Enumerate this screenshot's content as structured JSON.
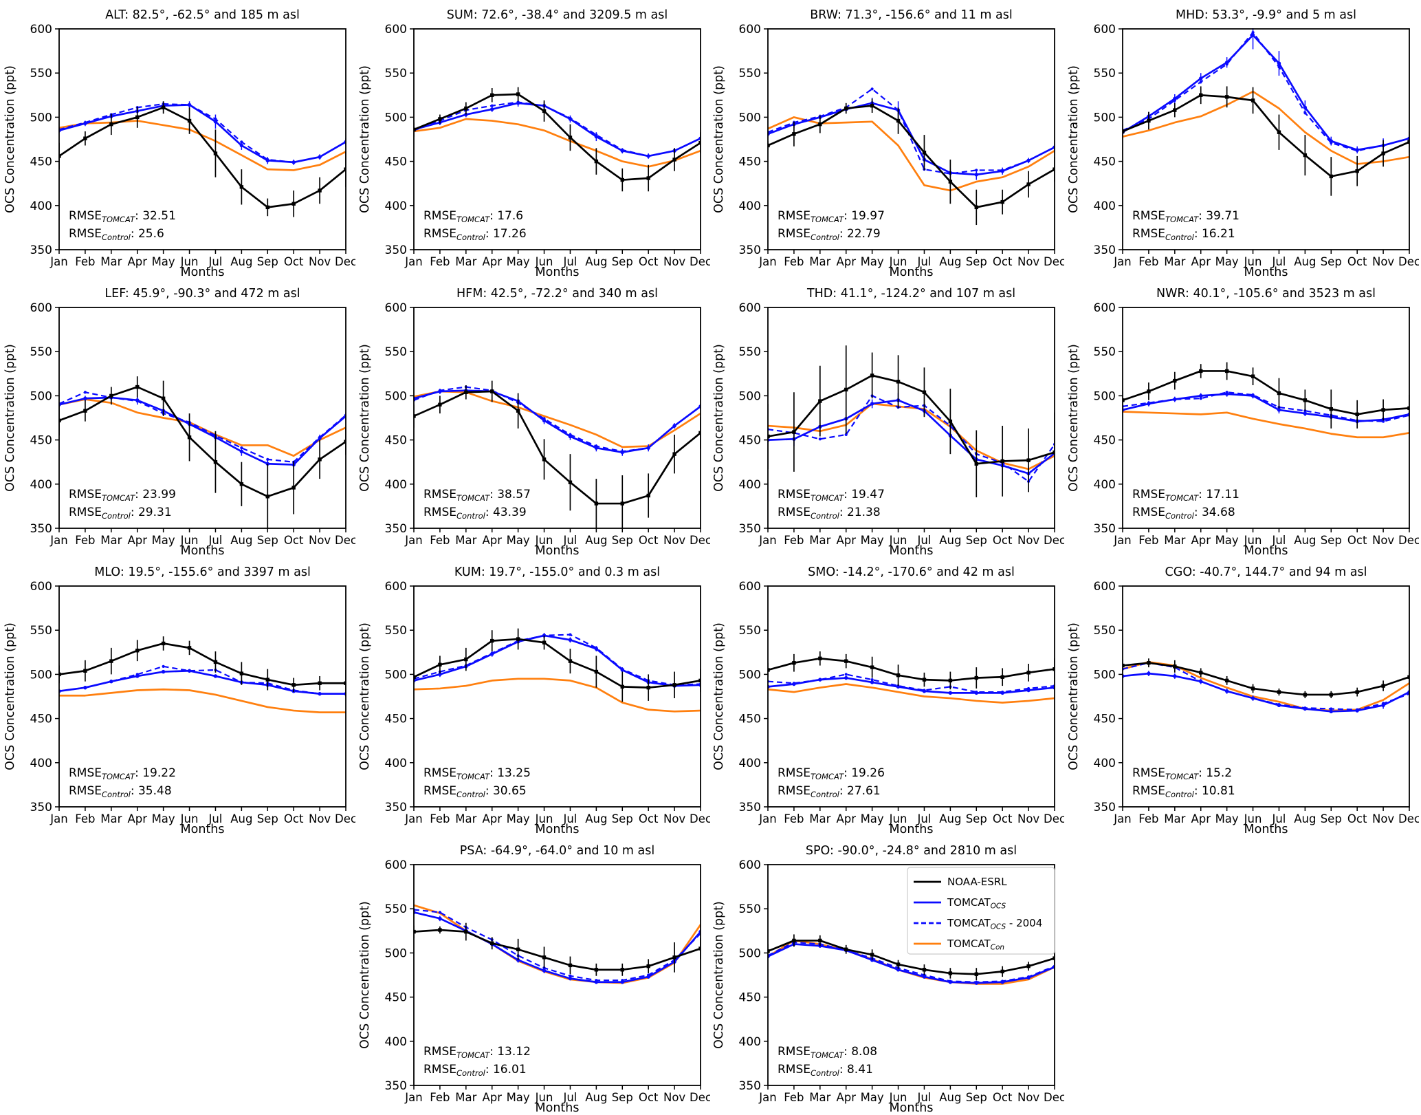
{
  "figure": {
    "ylabel": "OCS Concentration (ppt)",
    "xlabel": "Months",
    "months": [
      "Jan",
      "Feb",
      "Mar",
      "Apr",
      "May",
      "Jun",
      "Jul",
      "Aug",
      "Sep",
      "Oct",
      "Nov",
      "Dec"
    ],
    "yticks": [
      350,
      400,
      450,
      500,
      550,
      600
    ],
    "ylim": [
      350,
      600
    ],
    "colors": {
      "obs": "#000000",
      "ocs": "#0a0aff",
      "ocs2004": "#0a0aff",
      "con": "#ff7f0e"
    },
    "rmse": {
      "label": "RMSE",
      "tomcat_sub": "TOMCAT",
      "control_sub": "Control",
      "sep": ": "
    },
    "legend_entries": [
      {
        "key": "obs",
        "label_main": "NOAA-ESRL",
        "label_sub": "",
        "label_suffix": "",
        "style": "solid",
        "color": "#000000"
      },
      {
        "key": "ocs",
        "label_main": "TOMCAT",
        "label_sub": "OCS",
        "label_suffix": "",
        "style": "solid",
        "color": "#0a0aff"
      },
      {
        "key": "ocs2004",
        "label_main": "TOMCAT",
        "label_sub": "OCS",
        "label_suffix": " - 2004",
        "style": "dashed",
        "color": "#0a0aff"
      },
      {
        "key": "con",
        "label_main": "TOMCAT",
        "label_sub": "Con",
        "label_suffix": "",
        "style": "solid",
        "color": "#ff7f0e"
      }
    ]
  },
  "chart_data": [
    {
      "type": "line",
      "station": "ALT",
      "title": "ALT: 82.5°, -62.5° and 185 m asl",
      "row": 0,
      "col": 0,
      "show_legend": false,
      "rmse_tomcat": "32.51",
      "rmse_control": "25.6",
      "obs": [
        456,
        476,
        492,
        500,
        511,
        496,
        459,
        421,
        398,
        402,
        417,
        441
      ],
      "obs_err": [
        15,
        8,
        12,
        12,
        7,
        15,
        27,
        20,
        10,
        15,
        15,
        20
      ],
      "ocs": [
        485,
        493,
        501,
        507,
        513,
        514,
        495,
        468,
        451,
        449,
        455,
        472
      ],
      "ocs_err": [
        3,
        3,
        3,
        4,
        5,
        4,
        8,
        5,
        4,
        3,
        3,
        4
      ],
      "ocs2004": [
        486,
        494,
        503,
        511,
        515,
        514,
        498,
        472,
        452,
        449,
        455,
        472
      ],
      "con": [
        488,
        493,
        494,
        496,
        491,
        486,
        473,
        457,
        441,
        440,
        446,
        461
      ]
    },
    {
      "type": "line",
      "station": "SUM",
      "title": "SUM: 72.6°, -38.4° and 3209.5 m asl",
      "row": 0,
      "col": 1,
      "show_legend": false,
      "rmse_tomcat": "17.6",
      "rmse_control": "17.26",
      "obs": [
        486,
        498,
        510,
        525,
        526,
        507,
        477,
        450,
        429,
        431,
        452,
        471
      ],
      "obs_err": [
        8,
        5,
        7,
        8,
        8,
        12,
        15,
        15,
        13,
        15,
        13,
        12
      ],
      "ocs": [
        486,
        494,
        503,
        509,
        516,
        513,
        498,
        478,
        462,
        456,
        462,
        476
      ],
      "ocs_err": [
        3,
        3,
        3,
        3,
        4,
        4,
        4,
        5,
        3,
        3,
        3,
        3
      ],
      "ocs2004": [
        485,
        496,
        508,
        513,
        517,
        513,
        499,
        480,
        463,
        456,
        462,
        476
      ],
      "con": [
        484,
        488,
        498,
        496,
        492,
        485,
        473,
        462,
        450,
        444,
        451,
        462
      ]
    },
    {
      "type": "line",
      "station": "BRW",
      "title": "BRW: 71.3°, -156.6° and 11 m asl",
      "row": 0,
      "col": 2,
      "show_legend": false,
      "rmse_tomcat": "19.97",
      "rmse_control": "22.79",
      "obs": [
        468,
        481,
        492,
        510,
        513,
        496,
        460,
        427,
        398,
        404,
        424,
        441
      ],
      "obs_err": [
        5,
        14,
        10,
        6,
        8,
        15,
        20,
        25,
        20,
        14,
        15,
        14
      ],
      "ocs": [
        481,
        492,
        500,
        509,
        516,
        508,
        452,
        437,
        435,
        439,
        451,
        466
      ],
      "ocs_err": [
        4,
        4,
        3,
        4,
        6,
        10,
        8,
        5,
        6,
        4,
        3,
        4
      ],
      "ocs2004": [
        483,
        494,
        501,
        511,
        532,
        508,
        441,
        436,
        440,
        440,
        451,
        466
      ],
      "con": [
        487,
        500,
        493,
        494,
        495,
        468,
        423,
        417,
        427,
        432,
        444,
        462
      ]
    },
    {
      "type": "line",
      "station": "MHD",
      "title": "MHD: 53.3°, -9.9° and 5 m asl",
      "row": 0,
      "col": 3,
      "show_legend": false,
      "rmse_tomcat": "39.71",
      "rmse_control": "16.21",
      "obs": [
        484,
        496,
        508,
        525,
        523,
        519,
        483,
        457,
        433,
        439,
        459,
        472
      ],
      "obs_err": [
        8,
        10,
        8,
        10,
        12,
        15,
        20,
        23,
        22,
        17,
        15,
        12
      ],
      "ocs": [
        483,
        501,
        521,
        544,
        562,
        593,
        561,
        511,
        473,
        463,
        468,
        476
      ],
      "ocs_err": [
        4,
        5,
        5,
        6,
        6,
        16,
        14,
        8,
        5,
        4,
        8,
        4
      ],
      "ocs2004": [
        485,
        498,
        519,
        540,
        560,
        596,
        557,
        505,
        471,
        462,
        468,
        476
      ],
      "con": [
        478,
        485,
        494,
        501,
        514,
        529,
        510,
        483,
        462,
        447,
        450,
        455
      ]
    },
    {
      "type": "line",
      "station": "LEF",
      "title": "LEF: 45.9°, -90.3° and 472 m asl",
      "row": 1,
      "col": 0,
      "show_legend": false,
      "rmse_tomcat": "23.99",
      "rmse_control": "29.31",
      "obs": [
        472,
        483,
        500,
        510,
        497,
        453,
        425,
        400,
        386,
        396,
        428,
        448
      ],
      "obs_err": [
        17,
        12,
        10,
        12,
        20,
        27,
        35,
        25,
        37,
        30,
        22,
        15
      ],
      "ocs": [
        490,
        497,
        498,
        495,
        483,
        468,
        453,
        437,
        423,
        422,
        452,
        477
      ],
      "ocs_err": [
        3,
        3,
        3,
        5,
        4,
        4,
        4,
        5,
        4,
        4,
        4,
        4
      ],
      "ocs2004": [
        491,
        504,
        498,
        494,
        480,
        470,
        455,
        441,
        428,
        425,
        453,
        478
      ],
      "con": [
        490,
        496,
        492,
        481,
        475,
        470,
        456,
        444,
        444,
        432,
        450,
        464
      ]
    },
    {
      "type": "line",
      "station": "HFM",
      "title": "HFM: 42.5°, -72.2° and 340 m asl",
      "row": 1,
      "col": 1,
      "show_legend": false,
      "rmse_tomcat": "38.57",
      "rmse_control": "43.39",
      "obs": [
        477,
        490,
        504,
        505,
        483,
        428,
        402,
        378,
        378,
        387,
        434,
        458
      ],
      "obs_err": [
        13,
        10,
        8,
        12,
        20,
        23,
        32,
        28,
        32,
        25,
        22,
        18
      ],
      "ocs": [
        497,
        505,
        506,
        505,
        494,
        472,
        454,
        441,
        436,
        441,
        466,
        488
      ],
      "ocs_err": [
        3,
        3,
        3,
        3,
        4,
        4,
        4,
        4,
        4,
        4,
        3,
        3
      ],
      "ocs2004": [
        495,
        506,
        510,
        506,
        492,
        474,
        456,
        443,
        437,
        441,
        466,
        488
      ],
      "con": [
        499,
        505,
        504,
        494,
        487,
        477,
        467,
        456,
        442,
        443,
        461,
        480
      ]
    },
    {
      "type": "line",
      "station": "THD",
      "title": "THD: 41.1°, -124.2° and 107 m asl",
      "row": 1,
      "col": 2,
      "show_legend": false,
      "rmse_tomcat": "19.47",
      "rmse_control": "21.38",
      "obs": [
        454,
        459,
        494,
        507,
        523,
        516,
        504,
        471,
        423,
        426,
        427,
        436
      ],
      "obs_err": [
        37,
        45,
        40,
        50,
        26,
        30,
        28,
        37,
        38,
        40,
        36,
        45
      ],
      "ocs": [
        450,
        451,
        465,
        474,
        491,
        495,
        483,
        455,
        428,
        421,
        412,
        435
      ],
      "ocs_err": [
        4,
        8,
        4,
        5,
        5,
        8,
        6,
        6,
        6,
        5,
        8,
        6
      ],
      "ocs2004": [
        462,
        458,
        451,
        456,
        500,
        487,
        489,
        466,
        434,
        424,
        403,
        445
      ],
      "con": [
        466,
        464,
        460,
        467,
        491,
        488,
        485,
        465,
        438,
        424,
        417,
        432
      ]
    },
    {
      "type": "line",
      "station": "NWR",
      "title": "NWR: 40.1°, -105.6° and 3523 m asl",
      "row": 1,
      "col": 3,
      "show_legend": false,
      "rmse_tomcat": "17.11",
      "rmse_control": "34.68",
      "obs": [
        495,
        505,
        517,
        528,
        528,
        522,
        503,
        495,
        485,
        479,
        484,
        486
      ],
      "obs_err": [
        10,
        10,
        10,
        8,
        10,
        10,
        17,
        12,
        22,
        16,
        12,
        15
      ],
      "ocs": [
        484,
        491,
        496,
        500,
        502,
        500,
        484,
        480,
        476,
        471,
        473,
        479
      ],
      "ocs_err": [
        3,
        3,
        3,
        3,
        3,
        3,
        4,
        3,
        3,
        3,
        3,
        3
      ],
      "ocs2004": [
        488,
        492,
        496,
        497,
        504,
        501,
        487,
        483,
        478,
        472,
        471,
        478
      ],
      "con": [
        482,
        481,
        480,
        479,
        481,
        474,
        468,
        463,
        457,
        453,
        453,
        458
      ]
    },
    {
      "type": "line",
      "station": "MLO",
      "title": "MLO: 19.5°, -155.6° and 3397 m asl",
      "row": 2,
      "col": 0,
      "show_legend": false,
      "rmse_tomcat": "19.22",
      "rmse_control": "35.48",
      "obs": [
        500,
        504,
        515,
        527,
        535,
        530,
        514,
        501,
        494,
        488,
        490,
        490
      ],
      "obs_err": [
        10,
        12,
        15,
        12,
        8,
        8,
        12,
        13,
        12,
        8,
        8,
        15
      ],
      "ocs": [
        481,
        485,
        492,
        498,
        503,
        504,
        498,
        491,
        488,
        481,
        478,
        478
      ],
      "ocs_err": [
        2,
        2,
        2,
        2,
        2,
        2,
        2,
        2,
        2,
        2,
        2,
        2
      ],
      "ocs2004": [
        481,
        485,
        492,
        500,
        509,
        504,
        505,
        491,
        490,
        482,
        478,
        478
      ],
      "con": [
        476,
        476,
        479,
        482,
        483,
        482,
        477,
        470,
        463,
        459,
        457,
        457
      ]
    },
    {
      "type": "line",
      "station": "KUM",
      "title": "KUM: 19.7°, -155.0° and 0.3 m asl",
      "row": 2,
      "col": 1,
      "show_legend": false,
      "rmse_tomcat": "13.25",
      "rmse_control": "30.65",
      "obs": [
        497,
        511,
        517,
        538,
        540,
        536,
        515,
        503,
        486,
        485,
        488,
        493
      ],
      "obs_err": [
        8,
        10,
        13,
        12,
        12,
        8,
        14,
        18,
        17,
        15,
        15,
        13
      ],
      "ocs": [
        493,
        500,
        509,
        523,
        537,
        544,
        539,
        529,
        505,
        491,
        487,
        488
      ],
      "ocs_err": [
        3,
        3,
        3,
        3,
        3,
        3,
        3,
        3,
        3,
        3,
        3,
        3
      ],
      "ocs2004": [
        495,
        503,
        510,
        524,
        538,
        544,
        545,
        530,
        506,
        493,
        488,
        489
      ],
      "con": [
        483,
        484,
        487,
        493,
        495,
        495,
        493,
        485,
        468,
        460,
        458,
        459
      ]
    },
    {
      "type": "line",
      "station": "SMO",
      "title": "SMO: -14.2°, -170.6° and 42 m asl",
      "row": 2,
      "col": 2,
      "show_legend": false,
      "rmse_tomcat": "19.26",
      "rmse_control": "27.61",
      "obs": [
        505,
        513,
        518,
        515,
        508,
        499,
        494,
        493,
        496,
        497,
        502,
        506
      ],
      "obs_err": [
        8,
        10,
        8,
        8,
        12,
        12,
        8,
        10,
        12,
        10,
        10,
        12
      ],
      "ocs": [
        486,
        489,
        494,
        496,
        491,
        486,
        481,
        479,
        479,
        479,
        482,
        485
      ],
      "ocs_err": [
        2,
        2,
        2,
        2,
        2,
        2,
        2,
        2,
        2,
        2,
        2,
        2
      ],
      "ocs2004": [
        492,
        490,
        494,
        500,
        494,
        487,
        482,
        486,
        480,
        480,
        484,
        487
      ],
      "con": [
        483,
        480,
        485,
        489,
        485,
        480,
        475,
        473,
        470,
        468,
        470,
        473
      ]
    },
    {
      "type": "line",
      "station": "CGO",
      "title": "CGO: -40.7°, 144.7° and 94 m asl",
      "row": 2,
      "col": 3,
      "show_legend": false,
      "rmse_tomcat": "15.2",
      "rmse_control": "10.81",
      "obs": [
        510,
        513,
        509,
        502,
        493,
        484,
        480,
        477,
        477,
        480,
        487,
        497
      ],
      "obs_err": [
        7,
        5,
        7,
        5,
        5,
        5,
        4,
        4,
        4,
        5,
        6,
        7
      ],
      "ocs": [
        498,
        501,
        498,
        492,
        481,
        473,
        465,
        461,
        458,
        459,
        465,
        480
      ],
      "ocs_err": [
        3,
        3,
        3,
        3,
        3,
        3,
        2,
        2,
        2,
        2,
        4,
        3
      ],
      "ocs2004": [
        506,
        513,
        508,
        492,
        481,
        473,
        466,
        462,
        461,
        460,
        467,
        478
      ],
      "con": [
        506,
        514,
        510,
        496,
        485,
        475,
        469,
        461,
        459,
        460,
        471,
        490
      ]
    },
    {
      "type": "line",
      "station": "PSA",
      "title": "PSA: -64.9°, -64.0° and 10 m asl",
      "row": 3,
      "col": 1,
      "show_legend": false,
      "rmse_tomcat": "13.12",
      "rmse_control": "16.01",
      "obs": [
        524,
        526,
        524,
        511,
        504,
        495,
        486,
        481,
        481,
        485,
        495,
        505
      ],
      "obs_err": [
        7,
        4,
        10,
        7,
        12,
        12,
        10,
        7,
        7,
        8,
        17,
        12
      ],
      "ocs": [
        546,
        539,
        525,
        510,
        492,
        480,
        471,
        467,
        467,
        473,
        490,
        524
      ],
      "ocs_err": [
        3,
        3,
        3,
        3,
        3,
        3,
        2,
        2,
        2,
        2,
        3,
        3
      ],
      "ocs2004": [
        549,
        546,
        529,
        515,
        497,
        483,
        474,
        469,
        469,
        475,
        492,
        522
      ],
      "con": [
        554,
        545,
        525,
        510,
        491,
        479,
        470,
        467,
        466,
        472,
        489,
        532
      ]
    },
    {
      "type": "line",
      "station": "SPO",
      "title": "SPO: -90.0°, -24.8° and 2810 m asl",
      "row": 3,
      "col": 2,
      "show_legend": true,
      "rmse_tomcat": "8.08",
      "rmse_control": "8.41",
      "obs": [
        502,
        514,
        514,
        504,
        498,
        487,
        481,
        477,
        476,
        479,
        485,
        494
      ],
      "obs_err": [
        8,
        7,
        6,
        5,
        6,
        5,
        6,
        6,
        7,
        6,
        5,
        7
      ],
      "ocs": [
        496,
        510,
        508,
        503,
        492,
        481,
        473,
        467,
        466,
        467,
        472,
        484
      ],
      "ocs_err": [
        2,
        2,
        2,
        2,
        2,
        2,
        2,
        2,
        2,
        2,
        2,
        2
      ],
      "ocs2004": [
        497,
        512,
        510,
        503,
        494,
        483,
        475,
        468,
        467,
        468,
        473,
        485
      ],
      "con": [
        496,
        514,
        510,
        503,
        493,
        481,
        472,
        467,
        465,
        465,
        470,
        484
      ]
    }
  ]
}
